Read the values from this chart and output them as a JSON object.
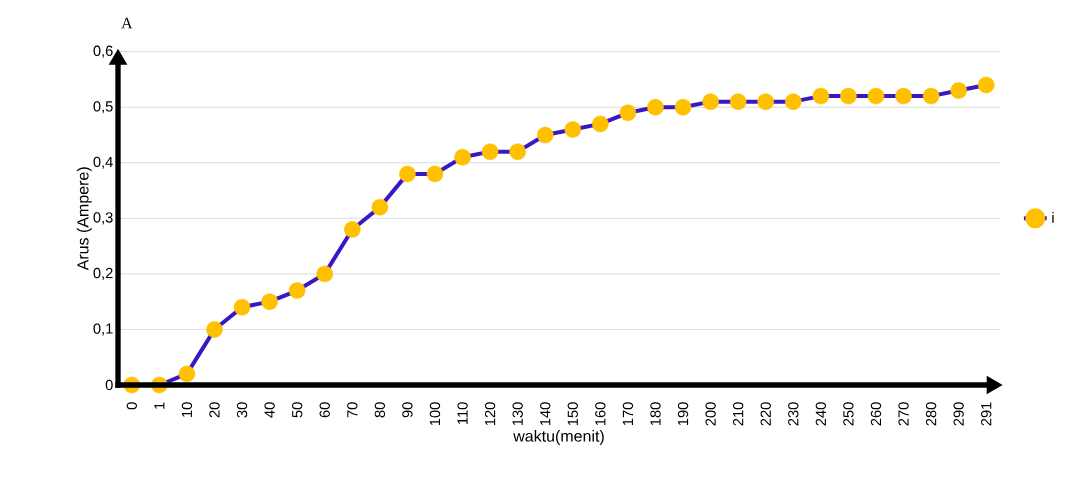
{
  "chart_data": {
    "type": "line",
    "ylabel": "Arus (Ampere)",
    "xlabel": "waktu(menit)",
    "annotations": [
      "A"
    ],
    "categories": [
      "0",
      "1",
      "10",
      "20",
      "30",
      "40",
      "50",
      "60",
      "70",
      "80",
      "90",
      "100",
      "110",
      "120",
      "130",
      "140",
      "150",
      "160",
      "170",
      "180",
      "190",
      "200",
      "210",
      "220",
      "230",
      "240",
      "250",
      "260",
      "270",
      "280",
      "290",
      "291"
    ],
    "series": [
      {
        "name": "i",
        "color": "#3a17c4",
        "colors": [
          "#ffc000",
          "#ffc000",
          "#ffc000",
          "#ffc000",
          "#ffc000",
          "#ffc000",
          "#ffc000",
          "#ffc000",
          "#ffc000",
          "#ffc000",
          "#ffc000",
          "#ffc000",
          "#ffc000",
          "#ffc000",
          "#ffc000",
          "#ffc000",
          "#ffc000",
          "#ffc000",
          "#ffc000",
          "#ffc000",
          "#ffc000",
          "#ffc000",
          "#ffc000",
          "#ffc000",
          "#ffc000",
          "#ffc000",
          "#ffc000",
          "#ffc000",
          "#ffc000",
          "#ffc000",
          "#ffc000",
          "#ffc000"
        ],
        "values": [
          0,
          0,
          0.02,
          0.1,
          0.14,
          0.15,
          0.17,
          0.2,
          0.28,
          0.32,
          0.38,
          0.38,
          0.41,
          0.42,
          0.42,
          0.45,
          0.46,
          0.47,
          0.49,
          0.5,
          0.5,
          0.51,
          0.51,
          0.51,
          0.51,
          0.52,
          0.52,
          0.52,
          0.52,
          0.52,
          0.53,
          0.54
        ]
      }
    ],
    "ylim": [
      0,
      0.6
    ],
    "yticks": [
      0,
      {
        "value": 0.1,
        "label": "0,1"
      },
      {
        "value": 0.2,
        "label": "0,2"
      },
      {
        "value": 0.3,
        "label": "0,3"
      },
      {
        "value": 0.4,
        "label": "0,4"
      },
      {
        "value": 0.5,
        "label": "0,5"
      },
      {
        "value": 0.6,
        "label": "0,6"
      }
    ],
    "grid": "y",
    "legend": "right",
    "marker": "circle",
    "line_style": "solid"
  }
}
